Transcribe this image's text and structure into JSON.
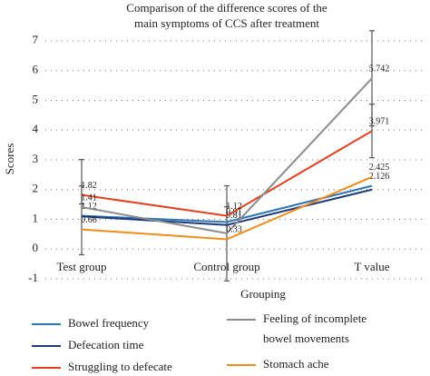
{
  "chart_data": {
    "type": "line",
    "title": "Comparison of the difference scores of the main symptoms of CCS after treatment",
    "xlabel": "Grouping",
    "ylabel": "Scores",
    "categories": [
      "Test group",
      "Control group",
      "T value"
    ],
    "ylim": [
      -1,
      7
    ],
    "yticks": [
      -1,
      0,
      1,
      2,
      3,
      4,
      5,
      6,
      7
    ],
    "grid": true,
    "series": [
      {
        "name": "Bowel frequency",
        "color": "#2e75b6",
        "values": [
          1.12,
          0.91,
          2.126
        ],
        "value_labels": [
          "1.12",
          "0.91",
          "2.126"
        ]
      },
      {
        "name": "Defecation time",
        "color": "#1f3a7a",
        "values": [
          1.1,
          0.81,
          2.0
        ],
        "value_labels": [
          null,
          "0.81",
          null
        ]
      },
      {
        "name": "Struggling to defecate",
        "color": "#e0401f",
        "values": [
          1.82,
          1.12,
          3.971
        ],
        "value_labels": [
          "1.82",
          "1.12",
          "3.971"
        ],
        "errors": [
          0.3,
          0.3,
          0.9
        ]
      },
      {
        "name": "Feeling of incomplete bowel movements",
        "color": "#8c8c8c",
        "values": [
          1.41,
          0.53,
          5.742
        ],
        "value_labels": [
          "1.41",
          null,
          "5.742"
        ],
        "errors": [
          1.6,
          1.6,
          1.6
        ]
      },
      {
        "name": "Stomach ache",
        "color": "#f28c1c",
        "values": [
          0.66,
          0.33,
          2.425
        ],
        "value_labels": [
          "0.66",
          "0.33",
          "2.425"
        ]
      }
    ]
  }
}
